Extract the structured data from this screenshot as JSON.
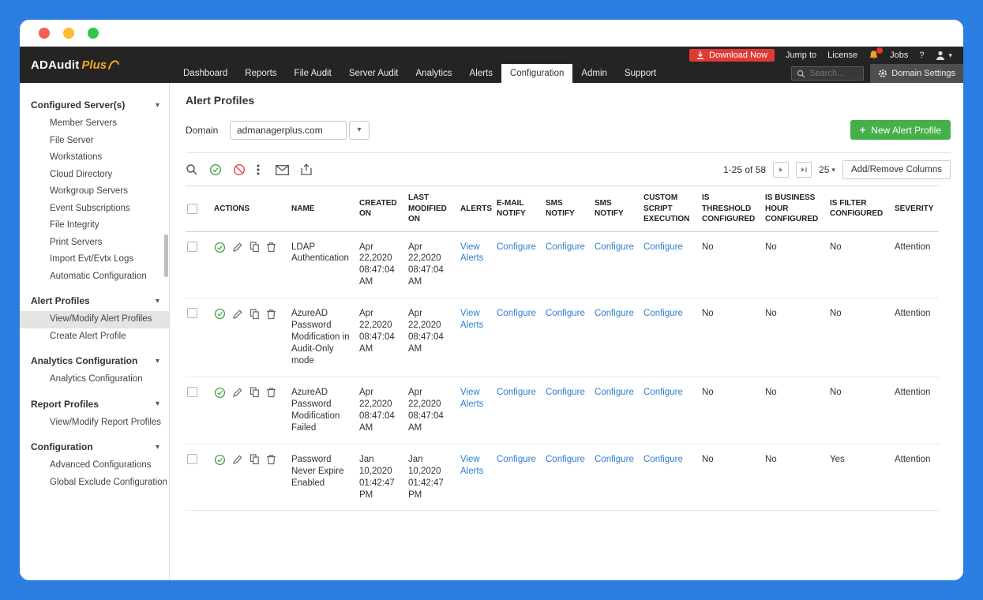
{
  "window": {
    "controls": [
      "close",
      "minimize",
      "zoom"
    ]
  },
  "colors": {
    "frame_blue": "#2b7de2",
    "header_dark": "#242424",
    "accent_green": "#45b049",
    "accent_red": "#e03a34",
    "link_blue": "#2f7dd1",
    "brand_orange": "#f7a823"
  },
  "header": {
    "brand": {
      "name": "ADAudit",
      "suffix": "Plus"
    },
    "utility": {
      "download_now": "Download Now",
      "jump_to": "Jump to",
      "license": "License",
      "jobs": "Jobs",
      "help": "?"
    },
    "nav": {
      "tabs": [
        "Dashboard",
        "Reports",
        "File Audit",
        "Server Audit",
        "Analytics",
        "Alerts",
        "Configuration",
        "Admin",
        "Support"
      ],
      "active_tab": "Configuration",
      "search_placeholder": "Search...",
      "domain_settings": "Domain Settings"
    }
  },
  "sidebar": {
    "sections": [
      {
        "label": "Configured Server(s)",
        "items": [
          "Member Servers",
          "File Server",
          "Workstations",
          "Cloud Directory",
          "Workgroup Servers",
          "Event Subscriptions",
          "File Integrity",
          "Print Servers",
          "Import Evt/Evtx Logs",
          "Automatic Configuration"
        ]
      },
      {
        "label": "Alert Profiles",
        "items": [
          "View/Modify Alert Profiles",
          "Create Alert Profile"
        ],
        "selected_item": "View/Modify Alert Profiles"
      },
      {
        "label": "Analytics Configuration",
        "items": [
          "Analytics Configuration"
        ]
      },
      {
        "label": "Report Profiles",
        "items": [
          "View/Modify Report Profiles"
        ]
      },
      {
        "label": "Configuration",
        "items": [
          "Advanced Configurations",
          "Global Exclude Configuration"
        ]
      }
    ]
  },
  "main": {
    "title": "Alert Profiles",
    "domain": {
      "label": "Domain",
      "value": "admanagerplus.com"
    },
    "new_alert_profile_button": "New Alert Profile",
    "toolbar_icons": [
      "search",
      "enable",
      "disable",
      "more-options",
      "email",
      "export"
    ],
    "pagination": {
      "range": "1-25 of 58",
      "page_size": "25",
      "add_remove_columns": "Add/Remove Columns"
    },
    "table": {
      "headers": [
        "ACTIONS",
        "NAME",
        "CREATED ON",
        "LAST MODIFIED ON",
        "ALERTS",
        "E-MAIL NOTIFY",
        "SMS NOTIFY",
        "SMS NOTIFY",
        "CUSTOM SCRIPT EXECUTION",
        "IS THRESHOLD CONFIGURED",
        "IS BUSINESS HOUR CONFIGURED",
        "IS FILTER CONFIGURED",
        "SEVERITY"
      ],
      "rows": [
        {
          "name": "LDAP Authentication",
          "created_on": "Apr 22,2020 08:47:04 AM",
          "last_modified_on": "Apr 22,2020 08:47:04 AM",
          "alerts": "View Alerts",
          "email_notify": "Configure",
          "sms_notify_1": "Configure",
          "sms_notify_2": "Configure",
          "custom_script_execution": "Configure",
          "is_threshold_configured": "No",
          "is_business_hour_configured": "No",
          "is_filter_configured": "No",
          "severity": "Attention"
        },
        {
          "name": "AzureAD Password Modification in Audit-Only mode",
          "created_on": "Apr 22,2020 08:47:04 AM",
          "last_modified_on": "Apr 22,2020 08:47:04 AM",
          "alerts": "View Alerts",
          "email_notify": "Configure",
          "sms_notify_1": "Configure",
          "sms_notify_2": "Configure",
          "custom_script_execution": "Configure",
          "is_threshold_configured": "No",
          "is_business_hour_configured": "No",
          "is_filter_configured": "No",
          "severity": "Attention"
        },
        {
          "name": "AzureAD Password Modification Failed",
          "created_on": "Apr 22,2020 08:47:04 AM",
          "last_modified_on": "Apr 22,2020 08:47:04 AM",
          "alerts": "View Alerts",
          "email_notify": "Configure",
          "sms_notify_1": "Configure",
          "sms_notify_2": "Configure",
          "custom_script_execution": "Configure",
          "is_threshold_configured": "No",
          "is_business_hour_configured": "No",
          "is_filter_configured": "No",
          "severity": "Attention"
        },
        {
          "name": "Password Never Expire Enabled",
          "created_on": "Jan 10,2020 01:42:47 PM",
          "last_modified_on": "Jan 10,2020 01:42:47 PM",
          "alerts": "View Alerts",
          "email_notify": "Configure",
          "sms_notify_1": "Configure",
          "sms_notify_2": "Configure",
          "custom_script_execution": "Configure",
          "is_threshold_configured": "No",
          "is_business_hour_configured": "No",
          "is_filter_configured": "Yes",
          "severity": "Attention"
        }
      ]
    }
  }
}
